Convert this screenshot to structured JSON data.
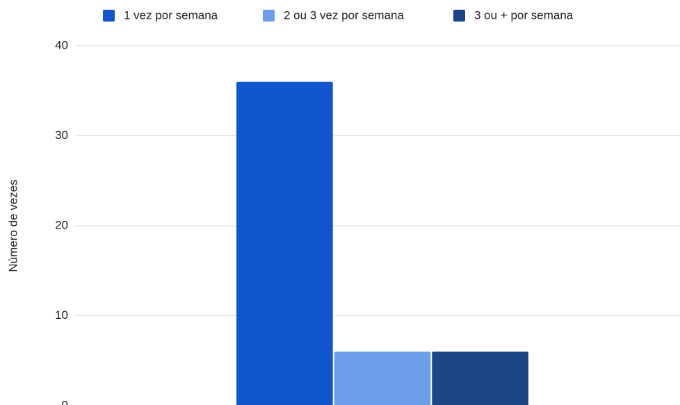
{
  "chart_data": {
    "type": "bar",
    "y_label": "Número de vezes",
    "categories": [
      null
    ],
    "series": [
      {
        "name": "1 vez por semana",
        "color": "#1155cc",
        "values": [
          36
        ]
      },
      {
        "name": "2 ou 3 vez por semana",
        "color": "#6d9eeb",
        "values": [
          6
        ]
      },
      {
        "name": "3 ou + por semana",
        "color": "#1c4587",
        "values": [
          6
        ]
      }
    ],
    "ylim": [
      0,
      40
    ],
    "yticks": [
      0,
      10,
      20,
      30,
      40
    ],
    "grid": true,
    "legend": "top"
  }
}
